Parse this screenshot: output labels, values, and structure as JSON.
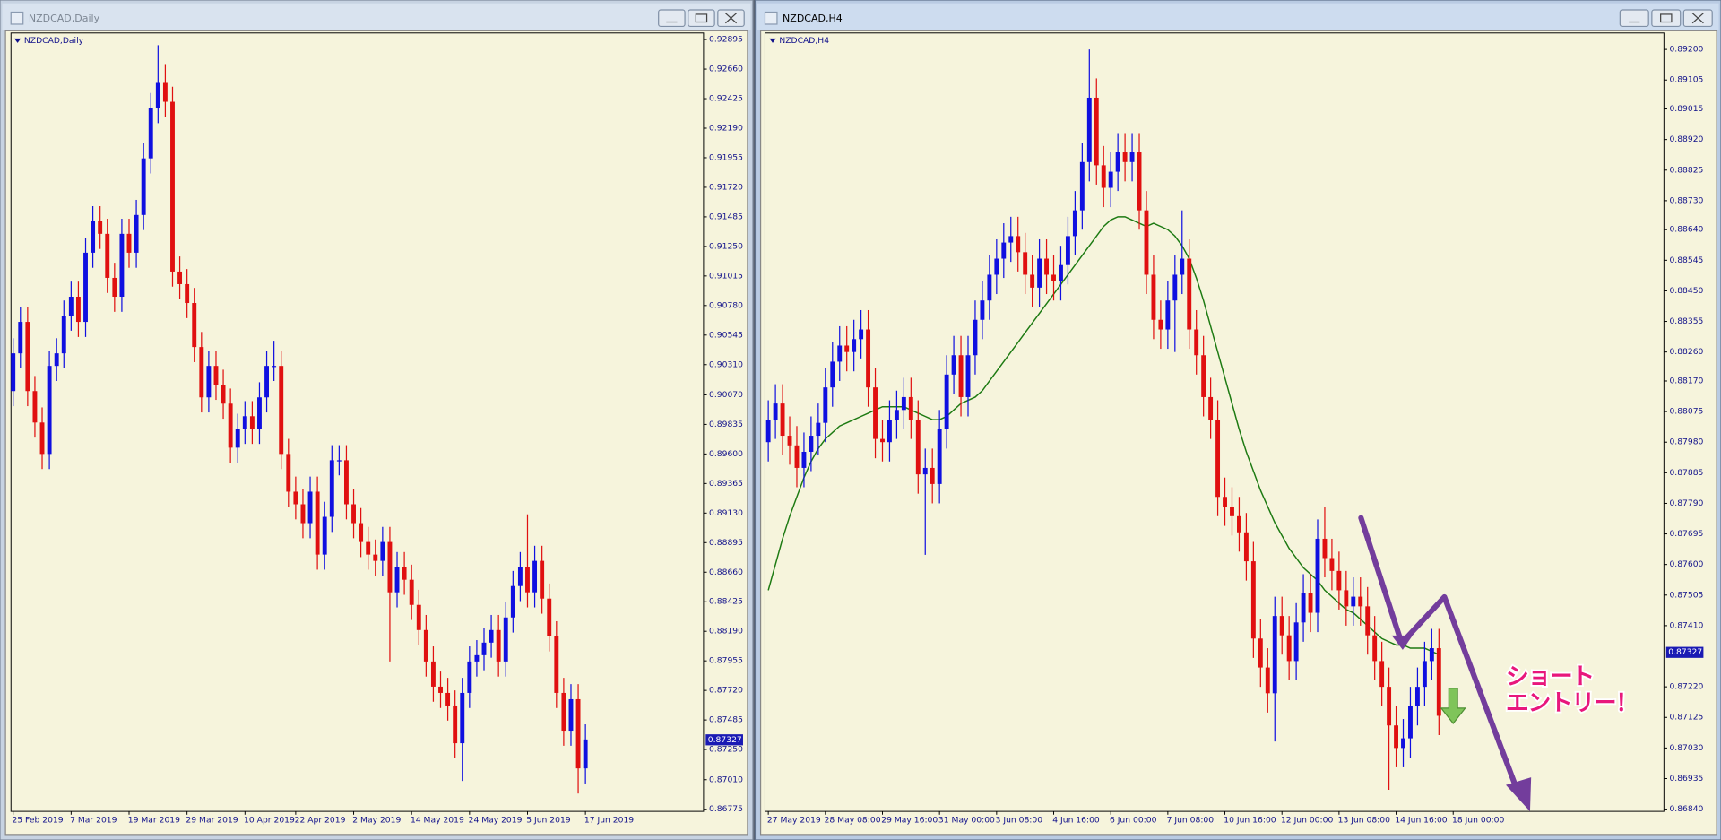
{
  "chart_data": [
    {
      "type": "candlestick",
      "title": "NZDCAD,Daily",
      "categories": [
        "25 Feb 2019",
        null,
        null,
        null,
        null,
        null,
        null,
        null,
        "7 Mar 2019",
        null,
        null,
        null,
        null,
        null,
        null,
        null,
        "19 Mar 2019",
        null,
        null,
        null,
        null,
        null,
        null,
        null,
        "29 Mar 2019",
        null,
        null,
        null,
        null,
        null,
        null,
        null,
        "10 Apr 2019",
        null,
        null,
        null,
        null,
        null,
        null,
        "22 Apr 2019",
        null,
        null,
        null,
        null,
        null,
        null,
        null,
        "2 May 2019",
        null,
        null,
        null,
        null,
        null,
        null,
        null,
        "14 May 2019",
        null,
        null,
        null,
        null,
        null,
        null,
        null,
        "24 May 2019",
        null,
        null,
        null,
        null,
        null,
        null,
        null,
        "5 Jun 2019",
        null,
        null,
        null,
        null,
        null,
        null,
        null,
        "17 Jun 2019"
      ],
      "open": [
        0.901,
        0.904,
        0.9065,
        0.901,
        0.8985,
        0.896,
        0.903,
        0.904,
        0.907,
        0.9085,
        0.9065,
        0.912,
        0.9145,
        0.9135,
        0.91,
        0.9085,
        0.9135,
        0.912,
        0.915,
        0.9195,
        0.9235,
        0.9255,
        0.924,
        0.9105,
        0.9095,
        0.908,
        0.9045,
        0.9005,
        0.903,
        0.9015,
        0.9,
        0.8965,
        0.898,
        0.899,
        0.898,
        0.9005,
        0.903,
        0.903,
        0.896,
        0.893,
        0.892,
        0.8905,
        0.893,
        0.888,
        0.891,
        0.8955,
        0.8955,
        0.892,
        0.8905,
        0.889,
        0.888,
        0.8875,
        0.889,
        0.885,
        0.887,
        0.886,
        0.884,
        0.882,
        0.8795,
        0.8775,
        0.877,
        0.876,
        0.873,
        0.877,
        0.8795,
        0.88,
        0.881,
        0.882,
        0.8795,
        0.883,
        0.8855,
        0.887,
        0.885,
        0.8875,
        0.8845,
        0.8815,
        0.877,
        0.874,
        0.8765,
        0.871
      ],
      "high": [
        0.9052,
        0.9077,
        0.9077,
        0.9022,
        0.8997,
        0.9042,
        0.9052,
        0.9082,
        0.9097,
        0.9097,
        0.9132,
        0.9157,
        0.9157,
        0.9147,
        0.9112,
        0.9147,
        0.9147,
        0.9162,
        0.9207,
        0.9247,
        0.9285,
        0.927,
        0.9252,
        0.9117,
        0.9107,
        0.9092,
        0.9057,
        0.9042,
        0.9042,
        0.9027,
        0.9012,
        0.8992,
        0.9002,
        0.9002,
        0.9017,
        0.9042,
        0.905,
        0.9042,
        0.8972,
        0.8942,
        0.8932,
        0.8942,
        0.8942,
        0.8922,
        0.8967,
        0.8967,
        0.8967,
        0.8932,
        0.8917,
        0.8902,
        0.8892,
        0.8902,
        0.8902,
        0.8882,
        0.8882,
        0.8872,
        0.8852,
        0.8832,
        0.8807,
        0.8787,
        0.8782,
        0.8772,
        0.8782,
        0.8807,
        0.8812,
        0.8822,
        0.8832,
        0.8832,
        0.8842,
        0.8867,
        0.8882,
        0.8912,
        0.8887,
        0.8887,
        0.8857,
        0.8827,
        0.8782,
        0.8777,
        0.8777,
        0.8745
      ],
      "low": [
        0.8998,
        0.9028,
        0.8998,
        0.8973,
        0.8948,
        0.8948,
        0.9018,
        0.9028,
        0.9058,
        0.9053,
        0.9053,
        0.9108,
        0.9123,
        0.9088,
        0.9073,
        0.9073,
        0.9108,
        0.9108,
        0.9138,
        0.9183,
        0.9223,
        0.9228,
        0.9093,
        0.9083,
        0.9068,
        0.9033,
        0.8993,
        0.8993,
        0.9003,
        0.8988,
        0.8953,
        0.8953,
        0.8968,
        0.8968,
        0.8968,
        0.8993,
        0.9018,
        0.8948,
        0.8918,
        0.8908,
        0.8893,
        0.8893,
        0.8868,
        0.8868,
        0.8898,
        0.8943,
        0.8908,
        0.8893,
        0.8878,
        0.8868,
        0.8863,
        0.8863,
        0.8795,
        0.8838,
        0.8848,
        0.8828,
        0.8808,
        0.8783,
        0.8763,
        0.8758,
        0.8748,
        0.8718,
        0.87,
        0.8758,
        0.8783,
        0.8788,
        0.8798,
        0.8783,
        0.8783,
        0.8818,
        0.8843,
        0.8838,
        0.8838,
        0.8833,
        0.8803,
        0.8758,
        0.8728,
        0.8728,
        0.869,
        0.8698
      ],
      "close": [
        0.904,
        0.9065,
        0.901,
        0.8985,
        0.896,
        0.903,
        0.904,
        0.907,
        0.9085,
        0.9065,
        0.912,
        0.9145,
        0.9135,
        0.91,
        0.9085,
        0.9135,
        0.912,
        0.915,
        0.9195,
        0.9235,
        0.9255,
        0.924,
        0.9105,
        0.9095,
        0.908,
        0.9045,
        0.9005,
        0.903,
        0.9015,
        0.9,
        0.8965,
        0.898,
        0.899,
        0.898,
        0.9005,
        0.903,
        0.903,
        0.896,
        0.893,
        0.892,
        0.8905,
        0.893,
        0.888,
        0.891,
        0.8955,
        0.8955,
        0.892,
        0.8905,
        0.889,
        0.888,
        0.8875,
        0.889,
        0.885,
        0.887,
        0.886,
        0.884,
        0.882,
        0.8795,
        0.8775,
        0.877,
        0.876,
        0.873,
        0.877,
        0.8795,
        0.88,
        0.881,
        0.882,
        0.8795,
        0.883,
        0.8855,
        0.887,
        0.885,
        0.8875,
        0.8845,
        0.8815,
        0.877,
        0.874,
        0.8765,
        0.871,
        0.8733
      ],
      "ylim": [
        0.86758,
        0.92947
      ],
      "yticks": [
        0.92895,
        {
          "value": 0.9266,
          "label": "0.92660"
        },
        0.92425,
        {
          "value": 0.9219,
          "label": "0.92190"
        },
        0.91955,
        {
          "value": 0.9172,
          "label": "0.91720"
        },
        0.91485,
        {
          "value": 0.9125,
          "label": "0.91250"
        },
        0.91015,
        {
          "value": 0.9078,
          "label": "0.90780"
        },
        0.90545,
        {
          "value": 0.9031,
          "label": "0.90310"
        },
        {
          "value": 0.9007,
          "label": "0.90070"
        },
        0.89835,
        {
          "value": 0.896,
          "label": "0.89600"
        },
        0.89365,
        {
          "value": 0.8913,
          "label": "0.89130"
        },
        0.88895,
        {
          "value": 0.8866,
          "label": "0.88660"
        },
        0.88425,
        {
          "value": 0.8819,
          "label": "0.88190"
        },
        0.87955,
        {
          "value": 0.8772,
          "label": "0.87720"
        },
        0.87485,
        {
          "value": 0.8725,
          "label": "0.87250"
        },
        {
          "value": 0.8701,
          "label": "0.87010"
        },
        0.86775
      ],
      "current_price": 0.87327,
      "colors": {
        "up": "#1010e0",
        "down": "#e01010",
        "background": "#f6f4dc",
        "price_box": "#1a1ab4"
      }
    },
    {
      "type": "candlestick",
      "title": "NZDCAD,H4",
      "categories": [
        "27 May 2019",
        null,
        null,
        null,
        null,
        null,
        null,
        null,
        "28 May 08:00",
        null,
        null,
        null,
        null,
        null,
        null,
        null,
        "29 May 16:00",
        null,
        null,
        null,
        null,
        null,
        null,
        null,
        "31 May 00:00",
        null,
        null,
        null,
        null,
        null,
        null,
        null,
        "3 Jun 08:00",
        null,
        null,
        null,
        null,
        null,
        null,
        null,
        "4 Jun 16:00",
        null,
        null,
        null,
        null,
        null,
        null,
        null,
        "6 Jun 00:00",
        null,
        null,
        null,
        null,
        null,
        null,
        null,
        "7 Jun 08:00",
        null,
        null,
        null,
        null,
        null,
        null,
        null,
        "10 Jun 16:00",
        null,
        null,
        null,
        null,
        null,
        null,
        null,
        "12 Jun 00:00",
        null,
        null,
        null,
        null,
        null,
        null,
        null,
        "13 Jun 08:00",
        null,
        null,
        null,
        null,
        null,
        null,
        null,
        "14 Jun 16:00",
        null,
        null,
        null,
        null,
        null,
        null,
        null,
        "18 Jun 00:00"
      ],
      "open": [
        0.8798,
        0.8805,
        0.881,
        0.88,
        0.8797,
        0.879,
        0.8795,
        0.88,
        0.8804,
        0.8815,
        0.8823,
        0.8828,
        0.8826,
        0.883,
        0.8833,
        0.8815,
        0.8799,
        0.8798,
        0.8805,
        0.8808,
        0.8812,
        0.8805,
        0.8788,
        0.879,
        0.8785,
        0.8802,
        0.8819,
        0.8825,
        0.8812,
        0.8825,
        0.8836,
        0.8842,
        0.885,
        0.8855,
        0.886,
        0.8862,
        0.8857,
        0.885,
        0.8846,
        0.8855,
        0.885,
        0.8848,
        0.8853,
        0.8862,
        0.887,
        0.8885,
        0.8905,
        0.8884,
        0.8877,
        0.8882,
        0.8888,
        0.8885,
        0.8888,
        0.887,
        0.885,
        0.8836,
        0.8833,
        0.8842,
        0.885,
        0.8855,
        0.8833,
        0.8825,
        0.8812,
        0.8805,
        0.8781,
        0.8778,
        0.8775,
        0.877,
        0.8761,
        0.8737,
        0.8728,
        0.872,
        0.8744,
        0.8738,
        0.873,
        0.8742,
        0.8751,
        0.8745,
        0.8768,
        0.8762,
        0.8758,
        0.8752,
        0.8747,
        0.875,
        0.8747,
        0.8738,
        0.873,
        0.8722,
        0.871,
        0.8703,
        0.8706,
        0.8716,
        0.8722,
        0.873,
        0.8734,
        null,
        null
      ],
      "high": [
        0.8811,
        0.8816,
        0.8816,
        0.8806,
        0.8803,
        0.8801,
        0.8806,
        0.881,
        0.8821,
        0.8829,
        0.8834,
        0.8834,
        0.8836,
        0.8839,
        0.8839,
        0.8821,
        0.8805,
        0.8811,
        0.8814,
        0.8818,
        0.8818,
        0.8811,
        0.8796,
        0.8796,
        0.8808,
        0.8825,
        0.8831,
        0.8831,
        0.8831,
        0.8842,
        0.8848,
        0.8856,
        0.8861,
        0.8866,
        0.8868,
        0.8868,
        0.8863,
        0.8856,
        0.8861,
        0.8861,
        0.8856,
        0.8859,
        0.8868,
        0.8876,
        0.8891,
        0.892,
        0.8911,
        0.889,
        0.8888,
        0.8894,
        0.8894,
        0.8894,
        0.8894,
        0.8876,
        0.8856,
        0.8842,
        0.8848,
        0.8856,
        0.887,
        0.8861,
        0.8839,
        0.8831,
        0.8818,
        0.8811,
        0.8787,
        0.8784,
        0.8781,
        0.8776,
        0.8767,
        0.8743,
        0.8734,
        0.875,
        0.875,
        0.8744,
        0.8748,
        0.8757,
        0.8757,
        0.8774,
        0.8778,
        0.8768,
        0.8764,
        0.8758,
        0.8756,
        0.8756,
        0.8753,
        0.8744,
        0.8736,
        0.8728,
        0.8716,
        0.8712,
        0.8722,
        0.8728,
        0.8736,
        0.874,
        0.874,
        null,
        null
      ],
      "low": [
        0.8792,
        0.8799,
        0.8794,
        0.8791,
        0.8784,
        0.8784,
        0.8789,
        0.8794,
        0.8798,
        0.8809,
        0.8817,
        0.882,
        0.882,
        0.8824,
        0.8809,
        0.8793,
        0.8792,
        0.8792,
        0.8799,
        0.8802,
        0.8799,
        0.8782,
        0.8763,
        0.8779,
        0.8779,
        0.8796,
        0.8813,
        0.8806,
        0.8806,
        0.8819,
        0.883,
        0.8836,
        0.8844,
        0.8849,
        0.8854,
        0.8851,
        0.8844,
        0.884,
        0.884,
        0.8844,
        0.8842,
        0.8842,
        0.8847,
        0.8856,
        0.8864,
        0.8879,
        0.8878,
        0.8871,
        0.8871,
        0.8876,
        0.8879,
        0.8879,
        0.8864,
        0.8844,
        0.883,
        0.8827,
        0.8827,
        0.8826,
        0.8844,
        0.8827,
        0.8819,
        0.8806,
        0.8799,
        0.8775,
        0.8772,
        0.8769,
        0.8764,
        0.8755,
        0.8731,
        0.8722,
        0.8714,
        0.8705,
        0.8732,
        0.8724,
        0.8724,
        0.8736,
        0.8739,
        0.8739,
        0.8756,
        0.8752,
        0.8746,
        0.8741,
        0.8741,
        0.8741,
        0.8732,
        0.8724,
        0.8716,
        0.869,
        0.8697,
        0.8697,
        0.87,
        0.871,
        0.8716,
        0.8724,
        0.8707,
        null,
        null
      ],
      "close": [
        0.8805,
        0.881,
        0.88,
        0.8797,
        0.879,
        0.8795,
        0.88,
        0.8804,
        0.8815,
        0.8823,
        0.8828,
        0.8826,
        0.883,
        0.8833,
        0.8815,
        0.8799,
        0.8798,
        0.8805,
        0.8808,
        0.8812,
        0.8805,
        0.8788,
        0.879,
        0.8785,
        0.8802,
        0.8819,
        0.8825,
        0.8812,
        0.8825,
        0.8836,
        0.8842,
        0.885,
        0.8855,
        0.886,
        0.8862,
        0.8857,
        0.885,
        0.8846,
        0.8855,
        0.885,
        0.8848,
        0.8853,
        0.8862,
        0.887,
        0.8885,
        0.8905,
        0.8884,
        0.8877,
        0.8882,
        0.8888,
        0.8885,
        0.8888,
        0.887,
        0.885,
        0.8836,
        0.8833,
        0.8842,
        0.885,
        0.8855,
        0.8833,
        0.8825,
        0.8812,
        0.8805,
        0.8781,
        0.8778,
        0.8775,
        0.877,
        0.8761,
        0.8737,
        0.8728,
        0.872,
        0.8744,
        0.8738,
        0.873,
        0.8742,
        0.8751,
        0.8745,
        0.8768,
        0.8762,
        0.8758,
        0.8752,
        0.8747,
        0.875,
        0.8747,
        0.8738,
        0.873,
        0.8722,
        0.871,
        0.8703,
        0.8706,
        0.8716,
        0.8722,
        0.873,
        0.8734,
        0.8713,
        null,
        null
      ],
      "moving_average": {
        "color": "#1d7a12",
        "values": [
          0.8752,
          0.876,
          0.8768,
          0.8775,
          0.8781,
          0.8787,
          0.8792,
          0.8796,
          0.8799,
          0.8801,
          0.8803,
          0.8804,
          0.8805,
          0.8806,
          0.8807,
          0.8808,
          0.8809,
          0.8809,
          0.8809,
          0.8809,
          0.8808,
          0.8807,
          0.8806,
          0.8805,
          0.8805,
          0.8806,
          0.8808,
          0.881,
          0.8811,
          0.8812,
          0.8814,
          0.8817,
          0.882,
          0.8823,
          0.8826,
          0.8829,
          0.8832,
          0.8835,
          0.8838,
          0.8841,
          0.8844,
          0.8847,
          0.885,
          0.8853,
          0.8856,
          0.8859,
          0.8862,
          0.8865,
          0.8867,
          0.8868,
          0.8868,
          0.8867,
          0.8866,
          0.8865,
          0.8866,
          0.8865,
          0.8864,
          0.8862,
          0.8859,
          0.8855,
          0.8849,
          0.8842,
          0.8834,
          0.8826,
          0.8818,
          0.881,
          0.8802,
          0.8795,
          0.8789,
          0.8783,
          0.8778,
          0.8773,
          0.8769,
          0.8765,
          0.8762,
          0.8759,
          0.8757,
          0.8755,
          0.8752,
          0.875,
          0.8748,
          0.8746,
          0.8745,
          0.8743,
          0.8741,
          0.8739,
          0.8737,
          0.8736,
          0.8735,
          0.8735,
          0.8734,
          0.8734,
          0.8734,
          0.8733,
          0.8732,
          null,
          null
        ]
      },
      "ylim": [
        0.86833,
        0.89251
      ],
      "yticks": [
        {
          "value": 0.892,
          "label": "0.89200"
        },
        0.89105,
        0.89015,
        {
          "value": 0.8892,
          "label": "0.88920"
        },
        0.88825,
        {
          "value": 0.8873,
          "label": "0.88730"
        },
        {
          "value": 0.8864,
          "label": "0.88640"
        },
        0.88545,
        {
          "value": 0.8845,
          "label": "0.88450"
        },
        0.88355,
        {
          "value": 0.8826,
          "label": "0.88260"
        },
        {
          "value": 0.8817,
          "label": "0.88170"
        },
        0.88075,
        {
          "value": 0.8798,
          "label": "0.87980"
        },
        0.87885,
        {
          "value": 0.8779,
          "label": "0.87790"
        },
        0.87695,
        {
          "value": 0.876,
          "label": "0.87600"
        },
        0.87505,
        {
          "value": 0.8741,
          "label": "0.87410"
        },
        {
          "value": 0.8722,
          "label": "0.87220"
        },
        0.87125,
        {
          "value": 0.8703,
          "label": "0.87030"
        },
        0.86935,
        {
          "value": 0.8684,
          "label": "0.86840"
        }
      ],
      "current_price": 0.87327,
      "annotations": [
        "ショート",
        "エントリー！"
      ],
      "colors": {
        "up": "#1010e0",
        "down": "#e01010",
        "background": "#f6f4dc",
        "price_box": "#1a1ab4"
      }
    }
  ]
}
